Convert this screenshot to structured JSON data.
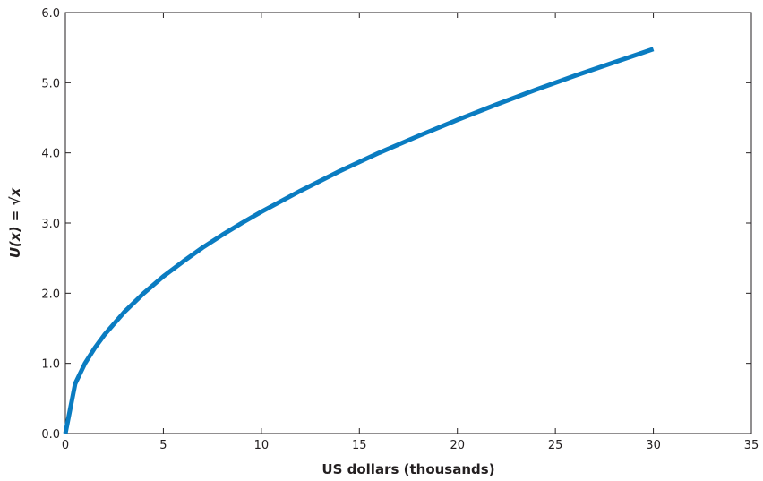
{
  "chart_data": {
    "type": "line",
    "xlabel": "US dollars (thousands)",
    "ylabel": "U(x) = √x",
    "xlim": [
      0,
      35
    ],
    "ylim": [
      0,
      6
    ],
    "x_ticks": [
      0,
      5,
      10,
      15,
      20,
      25,
      30,
      35
    ],
    "y_ticks": [
      0,
      1,
      2,
      3,
      4,
      5,
      6
    ],
    "x_tick_labels": [
      "0",
      "5",
      "10",
      "15",
      "20",
      "25",
      "30",
      "35"
    ],
    "y_tick_labels": [
      "0.0",
      "1.0",
      "2.0",
      "3.0",
      "4.0",
      "5.0",
      "6.0"
    ],
    "grid": false,
    "series": [
      {
        "color": "#0a7cc1",
        "x": [
          0,
          0.5,
          1,
          1.5,
          2,
          3,
          4,
          5,
          6,
          7,
          8,
          9,
          10,
          12,
          14,
          16,
          18,
          20,
          22,
          24,
          26,
          28,
          30
        ],
        "y": [
          0,
          0.71,
          1.0,
          1.22,
          1.41,
          1.73,
          2.0,
          2.24,
          2.45,
          2.65,
          2.83,
          3.0,
          3.16,
          3.46,
          3.74,
          4.0,
          4.24,
          4.47,
          4.69,
          4.9,
          5.1,
          5.29,
          5.48
        ]
      }
    ]
  }
}
